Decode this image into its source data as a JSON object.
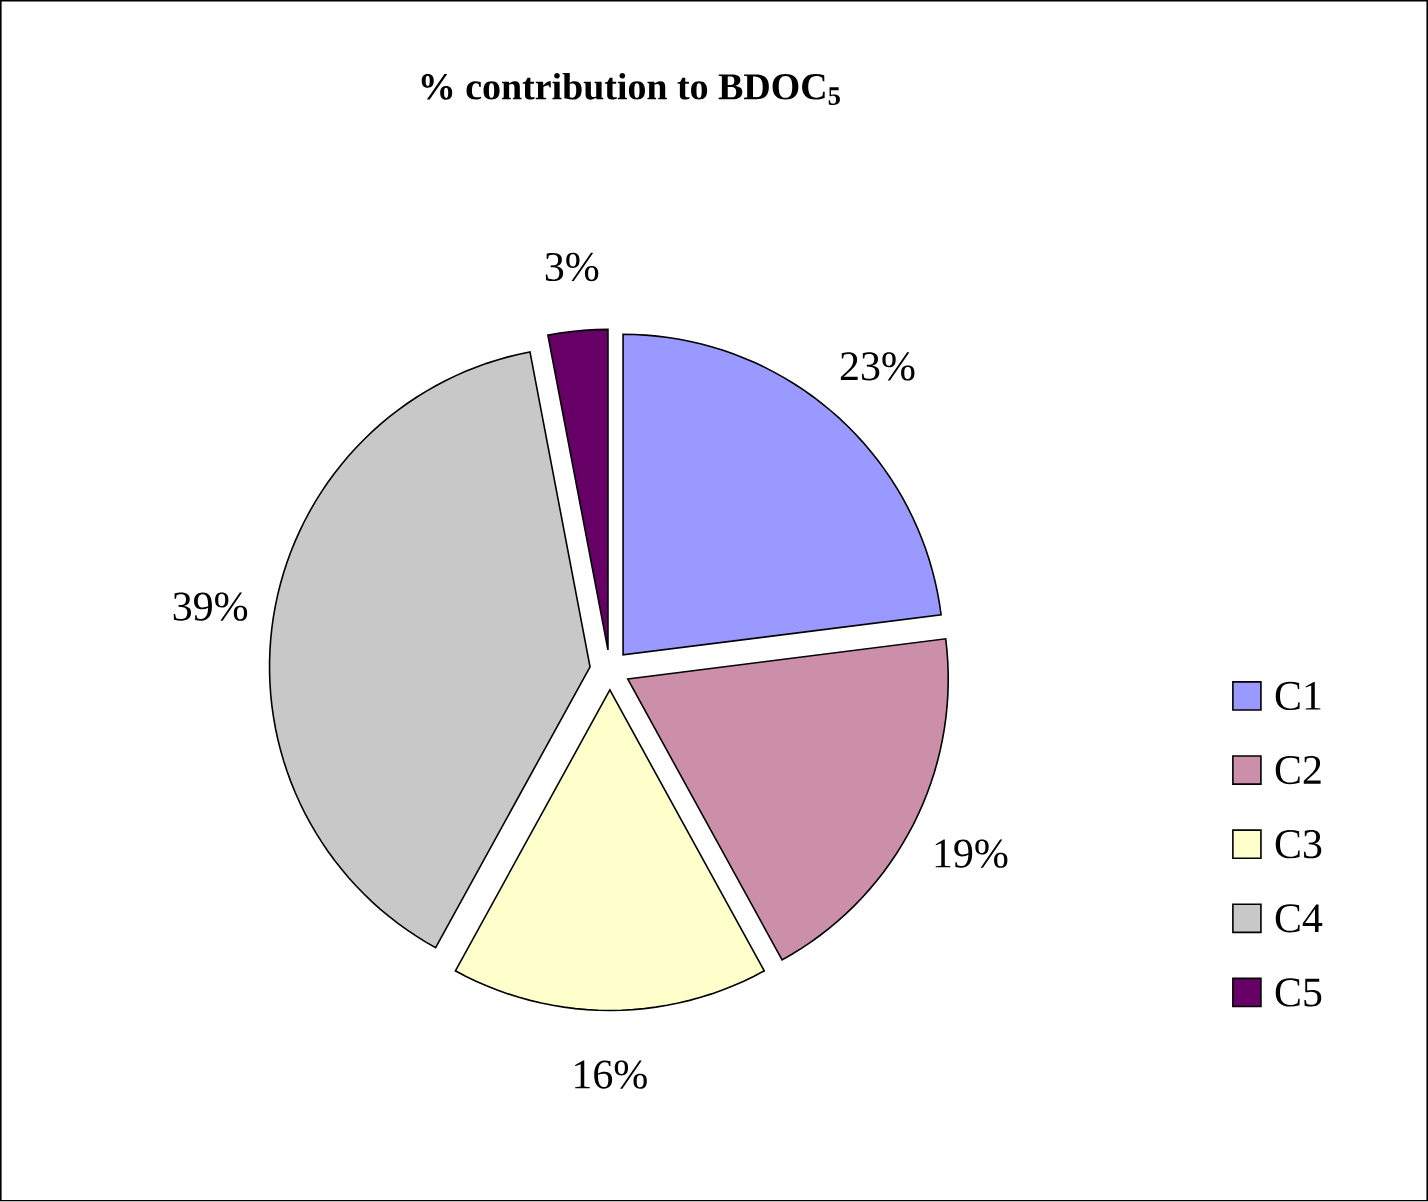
{
  "chart_data": {
    "type": "pie",
    "title": "% contribution to BDOC$_{5}$",
    "categories": [
      "C1",
      "C2",
      "C3",
      "C4",
      "C5"
    ],
    "values": [
      23,
      19,
      16,
      39,
      3
    ],
    "value_labels": [
      "23%",
      "19%",
      "16%",
      "39%",
      "3%"
    ],
    "colors": [
      "#9999ff",
      "#cc8faa",
      "#ffffcc",
      "#c8c8c8",
      "#660066"
    ],
    "legend": "right"
  }
}
